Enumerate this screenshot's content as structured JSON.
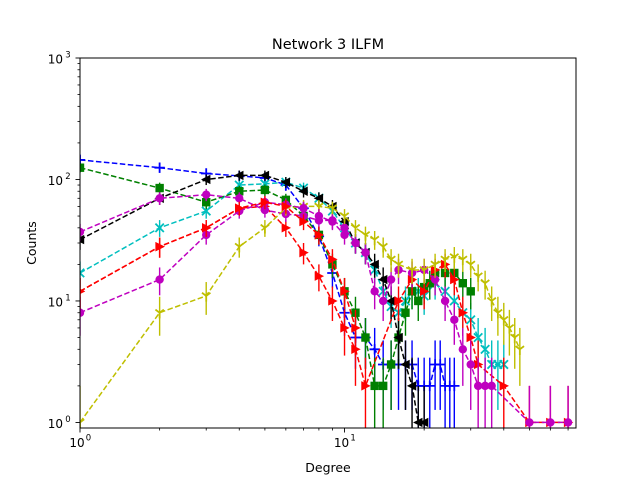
{
  "chart_data": {
    "type": "line",
    "title": "Network 3 ILFM",
    "xlabel": "Degree",
    "ylabel": "Counts",
    "xscale": "log",
    "yscale": "log",
    "xlim": [
      1,
      75
    ],
    "ylim": [
      0.9,
      1000
    ],
    "x_ticks": [
      {
        "value": 1,
        "label": "10",
        "exp": "0"
      },
      {
        "value": 10,
        "label": "10",
        "exp": "1"
      }
    ],
    "y_ticks": [
      {
        "value": 1,
        "label": "10",
        "exp": "0"
      },
      {
        "value": 10,
        "label": "10",
        "exp": "1"
      },
      {
        "value": 100,
        "label": "10",
        "exp": "2"
      },
      {
        "value": 1000,
        "label": "10",
        "exp": "3"
      }
    ],
    "grid": false,
    "legend": "none",
    "series": [
      {
        "color": "#0000ff",
        "marker": "plus",
        "x": [
          1,
          2,
          3,
          4,
          5,
          6,
          7,
          8,
          9,
          10,
          11,
          12,
          13,
          14,
          15,
          16,
          17,
          18,
          19,
          20,
          21,
          22,
          23,
          24,
          25,
          26
        ],
        "y": [
          145,
          125,
          112,
          107,
          103,
          90,
          58,
          34,
          17,
          8,
          5,
          5,
          4,
          3,
          3,
          3,
          3,
          3,
          2,
          2,
          2,
          3,
          3,
          2,
          2,
          2
        ]
      },
      {
        "color": "#00bfbf",
        "marker": "x",
        "x": [
          1,
          2,
          3,
          4,
          5,
          6,
          7,
          8,
          9,
          10,
          11,
          12,
          13,
          14,
          15,
          16,
          17,
          18,
          19,
          20,
          22,
          24,
          26,
          28,
          30,
          32,
          34,
          36,
          38,
          40
        ],
        "y": [
          17,
          40,
          55,
          90,
          92,
          95,
          85,
          70,
          55,
          40,
          30,
          25,
          18,
          12,
          9,
          8,
          10,
          12,
          12,
          11,
          14,
          12,
          10,
          8,
          7,
          5,
          4,
          3,
          3,
          3
        ]
      },
      {
        "color": "#008000",
        "marker": "square",
        "x": [
          1,
          2,
          3,
          4,
          5,
          6,
          7,
          8,
          9,
          10,
          11,
          12,
          13,
          14,
          15,
          16,
          17,
          18,
          19,
          20,
          21,
          22,
          24,
          26,
          28,
          30
        ],
        "y": [
          125,
          85,
          65,
          80,
          82,
          68,
          50,
          35,
          20,
          12,
          8,
          5,
          2,
          2,
          3,
          5,
          8,
          12,
          10,
          13,
          14,
          17,
          17,
          17,
          14,
          12
        ]
      },
      {
        "color": "#000000",
        "marker": "triangle-left",
        "x": [
          1,
          2,
          3,
          4,
          5,
          6,
          7,
          8,
          9,
          10,
          11,
          12,
          13,
          14,
          15,
          16,
          17,
          18,
          19,
          20
        ],
        "y": [
          32,
          70,
          100,
          108,
          108,
          95,
          80,
          70,
          60,
          45,
          30,
          25,
          20,
          15,
          10,
          5,
          3,
          2,
          1,
          1
        ]
      },
      {
        "color": "#ff0000",
        "marker": "triangle-right",
        "x": [
          1,
          2,
          3,
          4,
          5,
          6,
          7,
          8,
          9,
          10,
          11,
          12,
          16,
          18,
          20,
          22,
          24,
          26,
          28,
          30,
          32,
          40,
          50,
          60,
          70
        ],
        "y": [
          12,
          28,
          40,
          58,
          60,
          40,
          25,
          16,
          10,
          6,
          4,
          2,
          10,
          15,
          12,
          18,
          20,
          15,
          8,
          5,
          3,
          2,
          1,
          1,
          1
        ]
      },
      {
        "color": "#bf00bf",
        "marker": "circle",
        "x": [
          1,
          2,
          3,
          4,
          5,
          6,
          7,
          8,
          9,
          10,
          11,
          12,
          13,
          14,
          15,
          16,
          18,
          20,
          22,
          24,
          26,
          28,
          30,
          32,
          34,
          36,
          50,
          60,
          70
        ],
        "y": [
          37,
          70,
          75,
          70,
          56,
          52,
          50,
          46,
          46,
          40,
          30,
          25,
          12,
          10,
          15,
          18,
          17,
          18,
          15,
          10,
          7,
          4,
          3,
          2,
          2,
          2,
          1,
          1,
          1
        ]
      },
      {
        "color": "#bfbf00",
        "marker": "tri-down",
        "x": [
          1,
          2,
          3,
          4,
          5,
          6,
          7,
          8,
          9,
          10,
          11,
          12,
          13,
          14,
          15,
          16,
          18,
          20,
          22,
          24,
          26,
          28,
          30,
          32,
          34,
          36,
          38,
          40,
          42,
          44,
          46
        ],
        "y": [
          1,
          8,
          11,
          28,
          40,
          58,
          60,
          60,
          58,
          50,
          40,
          35,
          32,
          28,
          22,
          20,
          18,
          18,
          20,
          22,
          23,
          22,
          20,
          16,
          14,
          10,
          8,
          7,
          6,
          5,
          4
        ]
      },
      {
        "color": "#bf00bf",
        "marker": "circle",
        "x": [
          1,
          2,
          3,
          4,
          5,
          6,
          7,
          8,
          9,
          10
        ],
        "y": [
          8,
          15,
          35,
          55,
          65,
          62,
          58,
          50,
          45,
          35
        ]
      },
      {
        "color": "#ff0000",
        "marker": "triangle-right",
        "x": [
          1,
          2,
          3,
          4,
          5,
          6,
          7,
          8,
          9,
          10,
          11
        ],
        "y": [
          12,
          28,
          40,
          58,
          65,
          60,
          45,
          35,
          22,
          12,
          6
        ]
      }
    ]
  }
}
